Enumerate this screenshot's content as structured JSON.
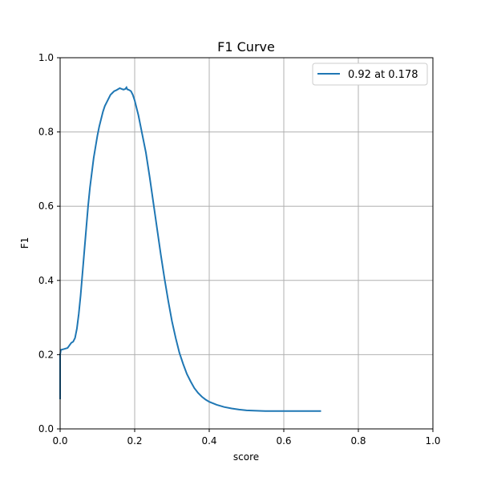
{
  "chart_data": {
    "type": "line",
    "title": "F1 Curve",
    "xlabel": "score",
    "ylabel": "F1",
    "xlim": [
      0,
      1
    ],
    "ylim": [
      0,
      1
    ],
    "xticks": [
      "0.0",
      "0.2",
      "0.4",
      "0.6",
      "0.8",
      "1.0"
    ],
    "yticks": [
      "0.0",
      "0.2",
      "0.4",
      "0.6",
      "0.8",
      "1.0"
    ],
    "grid": true,
    "legend_position": "top-right",
    "series": [
      {
        "name": "0.92 at 0.178",
        "color": "#1f77b4",
        "x": [
          0.0,
          0.0,
          0.002,
          0.01,
          0.02,
          0.025,
          0.03,
          0.035,
          0.04,
          0.045,
          0.05,
          0.055,
          0.06,
          0.065,
          0.07,
          0.075,
          0.08,
          0.085,
          0.09,
          0.095,
          0.1,
          0.105,
          0.11,
          0.115,
          0.12,
          0.125,
          0.13,
          0.135,
          0.14,
          0.145,
          0.15,
          0.155,
          0.16,
          0.165,
          0.17,
          0.175,
          0.178,
          0.18,
          0.185,
          0.19,
          0.195,
          0.2,
          0.205,
          0.21,
          0.215,
          0.22,
          0.23,
          0.24,
          0.25,
          0.26,
          0.27,
          0.28,
          0.29,
          0.3,
          0.31,
          0.32,
          0.33,
          0.34,
          0.35,
          0.36,
          0.37,
          0.38,
          0.39,
          0.4,
          0.42,
          0.44,
          0.46,
          0.48,
          0.5,
          0.52,
          0.55,
          0.58,
          0.6,
          0.65,
          0.7
        ],
        "y": [
          0.08,
          0.2,
          0.213,
          0.215,
          0.218,
          0.225,
          0.232,
          0.235,
          0.245,
          0.27,
          0.31,
          0.36,
          0.42,
          0.48,
          0.54,
          0.6,
          0.65,
          0.69,
          0.73,
          0.76,
          0.79,
          0.815,
          0.835,
          0.855,
          0.87,
          0.88,
          0.89,
          0.9,
          0.905,
          0.91,
          0.912,
          0.915,
          0.918,
          0.916,
          0.914,
          0.916,
          0.92,
          0.915,
          0.913,
          0.91,
          0.9,
          0.885,
          0.865,
          0.845,
          0.82,
          0.795,
          0.745,
          0.68,
          0.61,
          0.54,
          0.47,
          0.405,
          0.345,
          0.29,
          0.245,
          0.205,
          0.175,
          0.148,
          0.128,
          0.11,
          0.097,
          0.087,
          0.079,
          0.073,
          0.065,
          0.059,
          0.055,
          0.052,
          0.05,
          0.049,
          0.048,
          0.048,
          0.048,
          0.048,
          0.048
        ]
      }
    ]
  }
}
